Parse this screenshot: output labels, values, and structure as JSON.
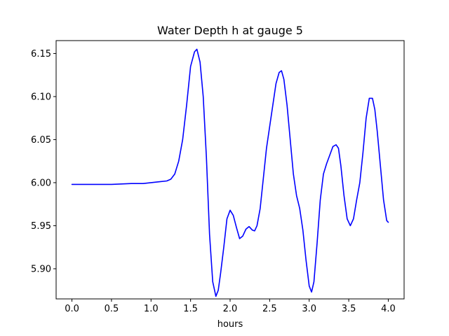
{
  "chart_data": {
    "type": "line",
    "title": "Water Depth h at gauge 5",
    "xlabel": "hours",
    "ylabel": "",
    "xlim": [
      -0.2,
      4.2
    ],
    "ylim": [
      5.865,
      6.165
    ],
    "xticks": [
      0.0,
      0.5,
      1.0,
      1.5,
      2.0,
      2.5,
      3.0,
      3.5,
      4.0
    ],
    "xtick_labels": [
      "0.0",
      "0.5",
      "1.0",
      "1.5",
      "2.0",
      "2.5",
      "3.0",
      "3.5",
      "4.0"
    ],
    "yticks": [
      5.9,
      5.95,
      6.0,
      6.05,
      6.1,
      6.15
    ],
    "ytick_labels": [
      "5.90",
      "5.95",
      "6.00",
      "6.05",
      "6.10",
      "6.15"
    ],
    "grid": false,
    "series": [
      {
        "color": "#0000ff",
        "x": [
          0.0,
          0.25,
          0.5,
          0.75,
          0.9,
          1.0,
          1.1,
          1.2,
          1.25,
          1.3,
          1.35,
          1.4,
          1.45,
          1.5,
          1.55,
          1.58,
          1.62,
          1.66,
          1.7,
          1.74,
          1.78,
          1.82,
          1.85,
          1.88,
          1.92,
          1.96,
          2.0,
          2.04,
          2.08,
          2.12,
          2.16,
          2.2,
          2.24,
          2.28,
          2.31,
          2.34,
          2.38,
          2.42,
          2.46,
          2.5,
          2.54,
          2.58,
          2.62,
          2.65,
          2.68,
          2.72,
          2.76,
          2.8,
          2.84,
          2.88,
          2.92,
          2.96,
          3.0,
          3.03,
          3.06,
          3.1,
          3.14,
          3.18,
          3.22,
          3.26,
          3.3,
          3.34,
          3.37,
          3.4,
          3.44,
          3.48,
          3.52,
          3.56,
          3.6,
          3.64,
          3.68,
          3.72,
          3.76,
          3.8,
          3.83,
          3.86,
          3.9,
          3.94,
          3.98,
          4.0
        ],
        "y": [
          5.998,
          5.998,
          5.998,
          5.999,
          5.999,
          6.0,
          6.001,
          6.002,
          6.004,
          6.01,
          6.025,
          6.05,
          6.09,
          6.135,
          6.152,
          6.155,
          6.14,
          6.1,
          6.03,
          5.94,
          5.885,
          5.868,
          5.875,
          5.895,
          5.925,
          5.958,
          5.968,
          5.962,
          5.948,
          5.935,
          5.938,
          5.946,
          5.949,
          5.945,
          5.944,
          5.95,
          5.97,
          6.005,
          6.04,
          6.065,
          6.09,
          6.115,
          6.128,
          6.13,
          6.12,
          6.09,
          6.05,
          6.01,
          5.985,
          5.97,
          5.945,
          5.91,
          5.88,
          5.873,
          5.885,
          5.93,
          5.98,
          6.01,
          6.022,
          6.032,
          6.042,
          6.044,
          6.04,
          6.02,
          5.985,
          5.958,
          5.95,
          5.958,
          5.98,
          6.0,
          6.035,
          6.075,
          6.098,
          6.098,
          6.085,
          6.06,
          6.02,
          5.98,
          5.956,
          5.954
        ]
      }
    ]
  }
}
